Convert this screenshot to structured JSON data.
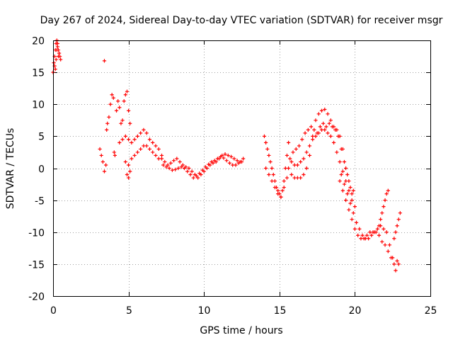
{
  "chart_data": {
    "type": "scatter",
    "title": "Day 267 of 2024, Sidereal Day-to-day VTEC variation (SDTVAR) for receiver msgr",
    "xlabel": "GPS time / hours",
    "ylabel": "SDTVAR / TECUs",
    "xlim": [
      0,
      25
    ],
    "ylim": [
      -20,
      20
    ],
    "xticks": [
      0,
      5,
      10,
      15,
      20,
      25
    ],
    "yticks": [
      -20,
      -15,
      -10,
      -5,
      0,
      5,
      10,
      15,
      20
    ],
    "xtick_labels": [
      "0",
      "5",
      "10",
      "15",
      "20",
      "25"
    ],
    "ytick_labels": [
      "-20",
      "-15",
      "-10",
      "-5",
      "0",
      "5",
      "10",
      "15",
      "20"
    ],
    "grid": true,
    "marker": "+",
    "color": "#ff0000",
    "series": [
      {
        "name": "SDTVAR",
        "x": [
          0.0,
          0.05,
          0.1,
          0.15,
          0.2,
          0.25,
          0.3,
          0.35,
          0.4,
          0.45,
          0.5,
          0.1,
          0.2,
          0.3,
          0.4,
          0.15,
          0.25,
          0.35,
          3.4,
          3.1,
          3.2,
          3.3,
          3.4,
          3.5,
          3.55,
          3.6,
          3.7,
          3.8,
          3.9,
          4.0,
          4.05,
          4.1,
          4.2,
          4.3,
          4.4,
          4.5,
          4.6,
          4.7,
          4.8,
          4.9,
          5.0,
          5.1,
          4.4,
          4.6,
          4.8,
          5.0,
          5.2,
          5.4,
          5.6,
          5.8,
          6.0,
          6.2,
          6.4,
          6.6,
          6.8,
          7.0,
          7.2,
          4.8,
          5.0,
          5.2,
          5.4,
          5.6,
          5.8,
          6.0,
          6.2,
          6.4,
          6.6,
          6.8,
          7.0,
          4.9,
          5.0,
          5.1,
          7.2,
          7.4,
          7.6,
          7.8,
          8.0,
          8.2,
          8.4,
          8.6,
          8.8,
          9.0,
          9.2,
          9.4,
          9.6,
          9.8,
          10.0,
          10.2,
          10.4,
          10.6,
          10.8,
          11.0,
          11.2,
          11.4,
          11.6,
          11.8,
          12.0,
          12.2,
          12.4,
          12.6,
          7.3,
          7.5,
          7.7,
          7.9,
          8.1,
          8.3,
          8.5,
          8.7,
          8.9,
          9.1,
          9.3,
          9.5,
          9.7,
          9.9,
          10.1,
          10.3,
          10.5,
          10.7,
          10.9,
          11.1,
          11.3,
          11.5,
          11.7,
          11.9,
          12.1,
          12.3,
          12.5,
          14.0,
          14.1,
          14.2,
          14.3,
          14.4,
          14.5,
          14.6,
          14.7,
          14.8,
          14.9,
          15.0,
          15.1,
          15.2,
          15.3,
          15.4,
          15.5,
          15.6,
          14.1,
          14.3,
          14.5,
          14.7,
          14.9,
          15.1,
          15.3,
          15.5,
          15.6,
          15.8,
          16.0,
          16.2,
          16.4,
          16.6,
          16.8,
          17.0,
          17.2,
          17.4,
          17.6,
          17.8,
          18.0,
          18.2,
          18.4,
          18.6,
          18.8,
          19.0,
          19.2,
          19.4,
          19.6,
          19.8,
          20.0,
          15.8,
          16.0,
          16.2,
          16.4,
          16.6,
          16.8,
          17.0,
          17.2,
          17.4,
          17.6,
          17.8,
          18.0,
          18.2,
          18.4,
          18.6,
          18.8,
          19.0,
          19.2,
          19.4,
          19.6,
          19.8,
          15.7,
          15.9,
          16.1,
          16.3,
          16.5,
          16.7,
          16.9,
          17.1,
          17.3,
          17.5,
          17.7,
          17.9,
          18.1,
          18.3,
          18.5,
          18.7,
          18.9,
          19.1,
          19.3,
          19.5,
          19.7,
          19.9,
          19.0,
          19.2,
          19.4,
          19.6,
          19.8,
          20.0,
          20.2,
          20.4,
          20.6,
          20.8,
          21.0,
          21.2,
          21.4,
          21.6,
          21.8,
          22.0,
          22.2,
          22.4,
          22.6,
          22.8,
          19.1,
          19.3,
          19.5,
          19.7,
          19.9,
          20.1,
          20.3,
          20.5,
          20.7,
          20.9,
          21.1,
          21.3,
          21.5,
          21.7,
          21.9,
          22.1,
          22.3,
          22.5,
          22.7,
          22.9,
          21.6,
          21.7,
          21.8,
          21.9,
          22.0,
          22.1,
          22.2,
          22.6,
          22.7,
          22.8,
          22.9,
          23.0
        ],
        "y": [
          15.0,
          16.5,
          17.5,
          18.5,
          19.5,
          20.0,
          19.0,
          18.5,
          18.0,
          17.5,
          17.0,
          16.0,
          17.0,
          19.5,
          18.0,
          15.5,
          18.5,
          17.5,
          16.8,
          3.0,
          2.0,
          1.0,
          -0.5,
          0.5,
          6.0,
          7.0,
          8.0,
          10.0,
          11.5,
          11.0,
          2.5,
          2.0,
          9.0,
          10.5,
          9.5,
          7.0,
          7.5,
          10.5,
          11.5,
          12.0,
          9.0,
          7.0,
          4.0,
          4.5,
          5.0,
          4.5,
          4.0,
          4.5,
          5.0,
          5.5,
          6.0,
          5.5,
          4.5,
          4.0,
          3.5,
          3.0,
          2.0,
          1.0,
          0.5,
          1.5,
          2.0,
          2.5,
          3.0,
          3.5,
          3.5,
          3.0,
          2.5,
          2.0,
          1.5,
          -1.0,
          -1.5,
          -0.5,
          1.5,
          1.0,
          0.5,
          0.8,
          1.2,
          1.5,
          1.0,
          0.5,
          0.2,
          0.0,
          -0.5,
          -1.0,
          -1.5,
          -1.0,
          -0.5,
          0.0,
          0.5,
          0.8,
          1.0,
          1.5,
          2.0,
          2.2,
          2.0,
          1.8,
          1.5,
          1.2,
          1.0,
          1.5,
          0.5,
          0.2,
          0.0,
          -0.3,
          -0.2,
          0.0,
          0.2,
          0.0,
          -0.5,
          -1.0,
          -1.5,
          -1.2,
          -0.8,
          -0.3,
          0.2,
          0.6,
          1.0,
          1.2,
          1.5,
          1.8,
          1.6,
          1.2,
          0.8,
          0.5,
          0.5,
          0.8,
          1.0,
          5.0,
          4.0,
          3.0,
          2.0,
          1.0,
          0.0,
          -1.0,
          -2.0,
          -3.0,
          -3.5,
          -4.0,
          -4.5,
          -3.5,
          -2.0,
          0.0,
          2.0,
          4.0,
          0.0,
          -1.0,
          -2.0,
          -3.0,
          -4.0,
          -4.5,
          -3.0,
          -1.5,
          0.0,
          -1.0,
          -1.5,
          -1.5,
          -1.5,
          -1.0,
          0.0,
          2.0,
          5.0,
          7.5,
          8.5,
          9.0,
          9.2,
          8.5,
          7.5,
          6.5,
          6.0,
          5.0,
          3.0,
          0.0,
          -2.0,
          -4.0,
          -6.0,
          1.0,
          0.5,
          0.5,
          1.0,
          1.5,
          2.5,
          3.5,
          4.5,
          5.0,
          5.5,
          6.0,
          6.0,
          5.5,
          5.0,
          4.0,
          2.5,
          1.0,
          -0.5,
          -2.0,
          -3.5,
          -5.0,
          1.5,
          2.5,
          3.0,
          3.5,
          4.5,
          5.5,
          6.0,
          6.5,
          6.0,
          5.5,
          6.5,
          7.0,
          6.5,
          7.0,
          6.5,
          6.0,
          5.0,
          3.0,
          1.0,
          -1.0,
          -3.0,
          -3.5,
          -2.0,
          -3.5,
          -5.0,
          -6.5,
          -8.0,
          -9.5,
          -10.5,
          -11.0,
          -11.0,
          -10.5,
          -10.0,
          -10.0,
          -10.0,
          -10.5,
          -11.5,
          -12.0,
          -13.0,
          -14.0,
          -15.0,
          -14.5,
          -1.0,
          -2.5,
          -4.0,
          -5.5,
          -7.0,
          -8.5,
          -9.5,
          -10.5,
          -11.0,
          -11.0,
          -10.5,
          -10.0,
          -9.5,
          -9.0,
          -9.5,
          -10.0,
          -12.0,
          -14.0,
          -16.0,
          -15.0,
          -9.0,
          -8.0,
          -7.0,
          -6.0,
          -5.0,
          -4.0,
          -3.5,
          -11.0,
          -10.0,
          -9.0,
          -8.0,
          -7.0
        ]
      }
    ]
  }
}
